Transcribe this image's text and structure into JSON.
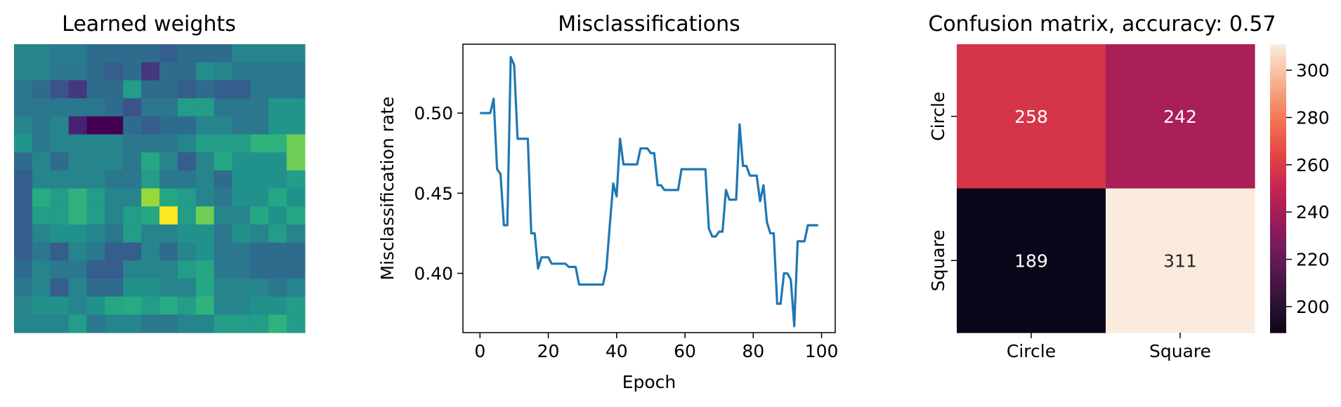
{
  "chart_data": [
    {
      "type": "heatmap",
      "title": "Learned weights",
      "grid": false,
      "axes": false,
      "colormap": "viridis",
      "rows": 16,
      "cols": 16,
      "values": [
        [
          0.45,
          0.45,
          0.42,
          0.42,
          0.35,
          0.35,
          0.35,
          0.35,
          0.3,
          0.35,
          0.35,
          0.35,
          0.45,
          0.45,
          0.45,
          0.45
        ],
        [
          0.45,
          0.45,
          0.4,
          0.4,
          0.35,
          0.3,
          0.35,
          0.18,
          0.35,
          0.35,
          0.48,
          0.45,
          0.4,
          0.4,
          0.4,
          0.4
        ],
        [
          0.4,
          0.35,
          0.25,
          0.18,
          0.35,
          0.35,
          0.55,
          0.35,
          0.35,
          0.3,
          0.35,
          0.3,
          0.3,
          0.4,
          0.4,
          0.4
        ],
        [
          0.4,
          0.4,
          0.4,
          0.4,
          0.4,
          0.35,
          0.25,
          0.4,
          0.4,
          0.55,
          0.55,
          0.4,
          0.4,
          0.4,
          0.52,
          0.52
        ],
        [
          0.45,
          0.4,
          0.45,
          0.12,
          0.0,
          0.0,
          0.35,
          0.3,
          0.35,
          0.35,
          0.45,
          0.45,
          0.4,
          0.4,
          0.52,
          0.52
        ],
        [
          0.52,
          0.4,
          0.45,
          0.45,
          0.45,
          0.45,
          0.4,
          0.4,
          0.4,
          0.45,
          0.55,
          0.55,
          0.55,
          0.65,
          0.65,
          0.78
        ],
        [
          0.35,
          0.45,
          0.35,
          0.45,
          0.45,
          0.45,
          0.4,
          0.6,
          0.45,
          0.3,
          0.45,
          0.6,
          0.5,
          0.5,
          0.5,
          0.78
        ],
        [
          0.3,
          0.45,
          0.45,
          0.45,
          0.45,
          0.4,
          0.4,
          0.55,
          0.4,
          0.4,
          0.45,
          0.35,
          0.5,
          0.5,
          0.5,
          0.55
        ],
        [
          0.3,
          0.62,
          0.55,
          0.65,
          0.55,
          0.45,
          0.45,
          0.85,
          0.6,
          0.55,
          0.45,
          0.4,
          0.5,
          0.5,
          0.6,
          0.5
        ],
        [
          0.3,
          0.55,
          0.55,
          0.65,
          0.55,
          0.45,
          0.55,
          0.6,
          1.0,
          0.55,
          0.78,
          0.45,
          0.45,
          0.6,
          0.5,
          0.6
        ],
        [
          0.3,
          0.45,
          0.5,
          0.5,
          0.45,
          0.4,
          0.55,
          0.45,
          0.45,
          0.5,
          0.5,
          0.4,
          0.5,
          0.45,
          0.55,
          0.45
        ],
        [
          0.3,
          0.4,
          0.3,
          0.45,
          0.4,
          0.3,
          0.3,
          0.45,
          0.35,
          0.45,
          0.5,
          0.4,
          0.4,
          0.35,
          0.35,
          0.35
        ],
        [
          0.35,
          0.45,
          0.4,
          0.4,
          0.3,
          0.3,
          0.45,
          0.45,
          0.45,
          0.55,
          0.6,
          0.4,
          0.4,
          0.35,
          0.35,
          0.35
        ],
        [
          0.4,
          0.45,
          0.3,
          0.45,
          0.35,
          0.35,
          0.5,
          0.5,
          0.45,
          0.45,
          0.6,
          0.45,
          0.45,
          0.45,
          0.4,
          0.45
        ],
        [
          0.45,
          0.5,
          0.5,
          0.45,
          0.5,
          0.6,
          0.62,
          0.55,
          0.62,
          0.55,
          0.65,
          0.45,
          0.45,
          0.5,
          0.5,
          0.55
        ],
        [
          0.45,
          0.45,
          0.45,
          0.55,
          0.4,
          0.45,
          0.45,
          0.4,
          0.4,
          0.45,
          0.45,
          0.55,
          0.55,
          0.55,
          0.65,
          0.55
        ]
      ]
    },
    {
      "type": "line",
      "title": "Misclassifications",
      "xlabel": "Epoch",
      "ylabel": "Misclassification rate",
      "xlim": [
        -5,
        104
      ],
      "ylim": [
        0.363,
        0.543
      ],
      "xticks": [
        0,
        20,
        40,
        60,
        80,
        100
      ],
      "yticks": [
        0.4,
        0.45,
        0.5
      ],
      "grid": false,
      "color": "#1f77b4",
      "x": [
        0,
        1,
        2,
        3,
        4,
        5,
        6,
        7,
        8,
        9,
        10,
        11,
        12,
        13,
        14,
        15,
        16,
        17,
        18,
        19,
        20,
        21,
        22,
        23,
        24,
        25,
        26,
        27,
        28,
        29,
        30,
        31,
        32,
        33,
        34,
        35,
        36,
        37,
        38,
        39,
        40,
        41,
        42,
        43,
        44,
        45,
        46,
        47,
        48,
        49,
        50,
        51,
        52,
        53,
        54,
        55,
        56,
        57,
        58,
        59,
        60,
        61,
        62,
        63,
        64,
        65,
        66,
        67,
        68,
        69,
        70,
        71,
        72,
        73,
        74,
        75,
        76,
        77,
        78,
        79,
        80,
        81,
        82,
        83,
        84,
        85,
        86,
        87,
        88,
        89,
        90,
        91,
        92,
        93,
        94,
        95,
        96,
        97,
        98,
        99
      ],
      "y": [
        0.5,
        0.5,
        0.5,
        0.5,
        0.509,
        0.465,
        0.462,
        0.43,
        0.43,
        0.535,
        0.53,
        0.484,
        0.484,
        0.484,
        0.484,
        0.425,
        0.425,
        0.403,
        0.41,
        0.41,
        0.41,
        0.406,
        0.406,
        0.406,
        0.406,
        0.406,
        0.404,
        0.404,
        0.404,
        0.393,
        0.393,
        0.393,
        0.393,
        0.393,
        0.393,
        0.393,
        0.393,
        0.403,
        0.43,
        0.456,
        0.448,
        0.484,
        0.468,
        0.468,
        0.468,
        0.468,
        0.468,
        0.478,
        0.478,
        0.478,
        0.475,
        0.475,
        0.455,
        0.455,
        0.452,
        0.452,
        0.452,
        0.452,
        0.452,
        0.465,
        0.465,
        0.465,
        0.465,
        0.465,
        0.465,
        0.465,
        0.465,
        0.428,
        0.423,
        0.423,
        0.426,
        0.426,
        0.452,
        0.446,
        0.446,
        0.446,
        0.493,
        0.467,
        0.467,
        0.461,
        0.461,
        0.461,
        0.445,
        0.455,
        0.432,
        0.425,
        0.425,
        0.381,
        0.381,
        0.4,
        0.4,
        0.396,
        0.367,
        0.42,
        0.42,
        0.42,
        0.43,
        0.43,
        0.43,
        0.43
      ]
    },
    {
      "type": "heatmap",
      "title": "Confusion matrix, accuracy: 0.57",
      "grid": false,
      "colormap": "rocket",
      "xticklabels": [
        "Circle",
        "Square"
      ],
      "yticklabels": [
        "Circle",
        "Square"
      ],
      "values": [
        [
          258,
          242
        ],
        [
          189,
          311
        ]
      ],
      "annotations": [
        [
          "258",
          "242"
        ],
        [
          "189",
          "311"
        ]
      ],
      "vmin": 189,
      "vmax": 311,
      "colorbar_ticks": [
        200,
        220,
        240,
        260,
        280,
        300
      ]
    }
  ]
}
